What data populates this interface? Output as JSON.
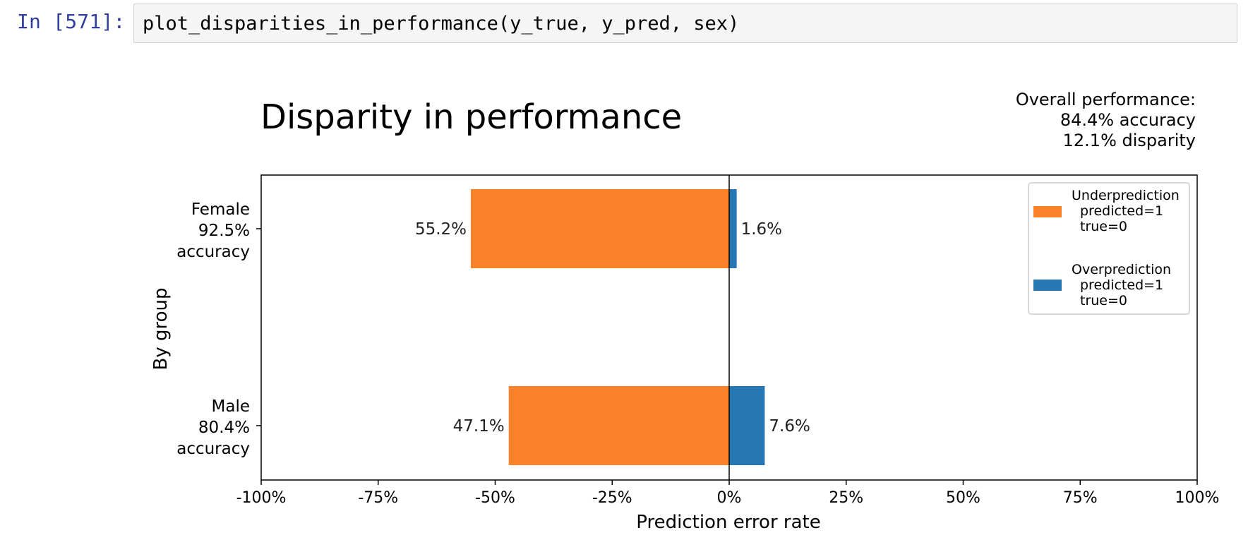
{
  "cell": {
    "prompt": "In [571]:",
    "code": "plot_disparities_in_performance(y_true, y_pred, sex)"
  },
  "figure": {
    "title": "Disparity in performance",
    "overall": {
      "heading": "Overall performance:",
      "accuracy": "84.4% accuracy",
      "disparity": "12.1% disparity"
    }
  },
  "chart_data": {
    "type": "bar",
    "orientation": "horizontal",
    "title": "Disparity in performance",
    "xlabel": "Prediction error rate",
    "ylabel": "By group",
    "xlim": [
      -100,
      100
    ],
    "xticks": [
      "-100%",
      "-75%",
      "-50%",
      "-25%",
      "0%",
      "25%",
      "50%",
      "75%",
      "100%"
    ],
    "xtick_values": [
      -100,
      -75,
      -50,
      -25,
      0,
      25,
      50,
      75,
      100
    ],
    "groups": [
      {
        "name": "Female",
        "accuracy": "92.5%",
        "accuracy_word": "accuracy"
      },
      {
        "name": "Male",
        "accuracy": "80.4%",
        "accuracy_word": "accuracy"
      }
    ],
    "series": [
      {
        "name": "Underprediction",
        "legend_lines": [
          "Underprediction",
          "predicted=1",
          "true=0"
        ],
        "color": "#fc812b",
        "values": [
          -55.2,
          -47.1
        ],
        "labels": [
          "55.2%",
          "47.1%"
        ]
      },
      {
        "name": "Overprediction",
        "legend_lines": [
          "Overprediction",
          "predicted=1",
          "true=0"
        ],
        "color": "#2677b4",
        "values": [
          1.6,
          7.6
        ],
        "labels": [
          "1.6%",
          "7.6%"
        ]
      }
    ],
    "legend_position": "top-right",
    "grid": false
  }
}
